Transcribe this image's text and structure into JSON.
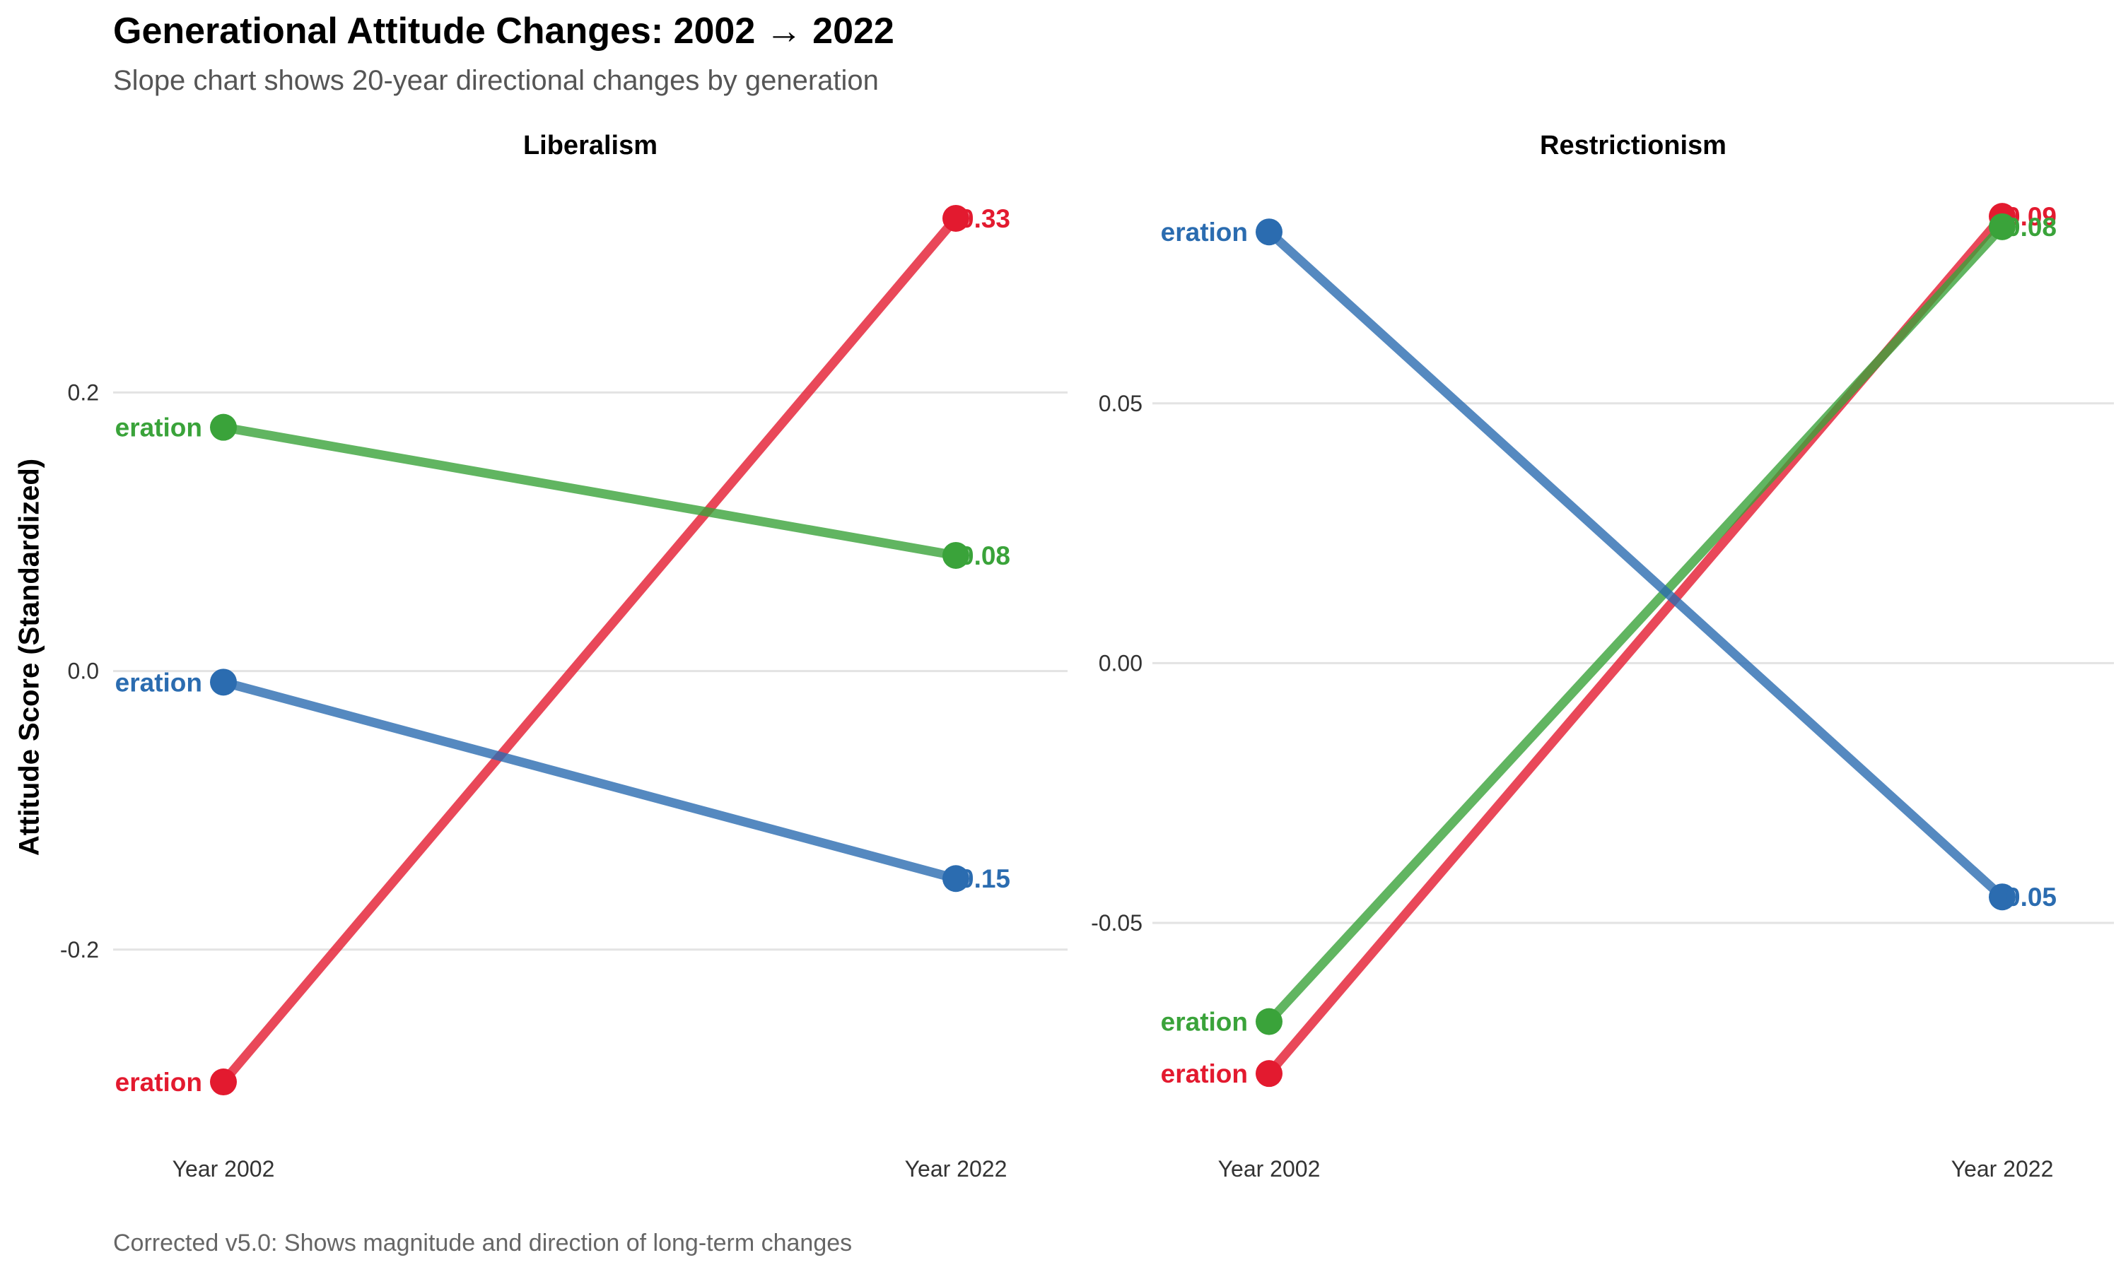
{
  "title": "Generational Attitude Changes: 2002 → 2022",
  "subtitle": "Slope chart shows 20-year directional changes by generation",
  "caption": "Corrected v5.0: Shows magnitude and direction of long-term changes",
  "ylabel": "Attitude Score (Standardized)",
  "colors": {
    "red": "#e31a2f",
    "green": "#3aa33a",
    "blue": "#2b6cb0"
  },
  "chart_data": [
    {
      "type": "line",
      "panel": "Liberalism",
      "categories": [
        "Year 2002",
        "Year 2022"
      ],
      "ylim": [
        -0.33,
        0.36
      ],
      "yticks": [
        -0.2,
        0.0,
        0.2
      ],
      "ytick_labels": [
        "-0.2",
        "0.0",
        "0.2"
      ],
      "grid": true,
      "series": [
        {
          "color": "red",
          "values": [
            -0.295,
            0.325
          ],
          "start_label": "eration",
          "end_label": "0.33"
        },
        {
          "color": "green",
          "values": [
            0.175,
            0.083
          ],
          "start_label": "eration",
          "end_label": "0.08"
        },
        {
          "color": "blue",
          "values": [
            -0.008,
            -0.149
          ],
          "start_label": "eration",
          "end_label": "0.15"
        }
      ]
    },
    {
      "type": "line",
      "panel": "Restrictionism",
      "categories": [
        "Year 2002",
        "Year 2022"
      ],
      "ylim": [
        -0.09,
        0.095
      ],
      "yticks": [
        -0.05,
        0.0,
        0.05
      ],
      "ytick_labels": [
        "-0.05",
        "0.00",
        "0.05"
      ],
      "grid": true,
      "series": [
        {
          "color": "red",
          "values": [
            -0.079,
            0.086
          ],
          "start_label": "eration",
          "end_label": "0.09"
        },
        {
          "color": "green",
          "values": [
            -0.069,
            0.084
          ],
          "start_label": "eration",
          "end_label": "0.08"
        },
        {
          "color": "blue",
          "values": [
            0.083,
            -0.045
          ],
          "start_label": "eration",
          "end_label": "0.05"
        }
      ]
    }
  ]
}
